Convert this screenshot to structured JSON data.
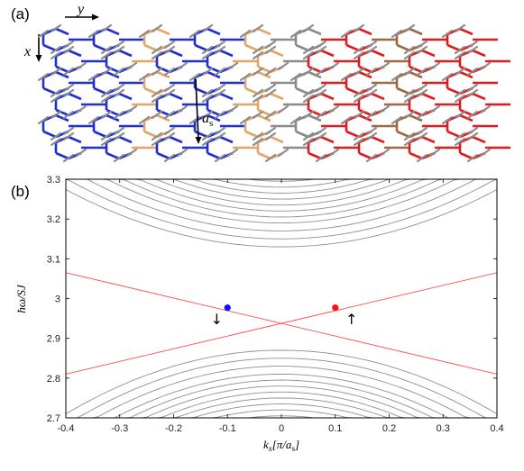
{
  "figure": {
    "panel_a_label": "(a)",
    "panel_b_label": "(b)",
    "lattice": {
      "x_axis_label": "x",
      "y_axis_label": "y",
      "spacing_label": "a",
      "spacing_subscript": "s",
      "colors": {
        "left_region": "#1f2fd0",
        "right_region": "#e11b1b",
        "interface_left": "#e3a56a",
        "interface_right": "#9c6a3e",
        "spins": "#8c8c8c",
        "center_bonds": "#8a8a8a"
      },
      "icons": [
        "arrow-icon",
        "spin-cone-icon"
      ]
    }
  },
  "chart_data": {
    "type": "line",
    "title": "",
    "xlabel": "k_x[π/a_s]",
    "ylabel": "ħω/SJ",
    "xlim": [
      -0.4,
      0.4
    ],
    "ylim": [
      2.7,
      3.3
    ],
    "x_ticks": [
      -0.4,
      -0.3,
      -0.2,
      -0.1,
      0,
      0.1,
      0.2,
      0.3,
      0.4
    ],
    "y_ticks": [
      2.7,
      2.8,
      2.9,
      3,
      3.1,
      3.2,
      3.3
    ],
    "x_tick_labels": [
      "-0.4",
      "-0.3",
      "-0.2",
      "-0.1",
      "0",
      "0.1",
      "0.2",
      "0.3",
      "0.4"
    ],
    "y_tick_labels": [
      "2.7",
      "2.8",
      "2.9",
      "3",
      "3.1",
      "3.2",
      "3.3"
    ],
    "grid": false,
    "bulk_bands": {
      "color": "#8f8f8f",
      "upper_band_minima_at_kx0": [
        3.13,
        3.15,
        3.17,
        3.19,
        3.205,
        3.22,
        3.235,
        3.25,
        3.265,
        3.28,
        3.295,
        3.31,
        3.33,
        3.36
      ],
      "upper_band_curvature": [
        0.9,
        0.95,
        1.0,
        1.05,
        1.1,
        1.15,
        1.2,
        1.25,
        1.3,
        1.3,
        1.3,
        1.3,
        1.3,
        1.3
      ],
      "lower_band_maxima_at_kx0": [
        2.87,
        2.85,
        2.83,
        2.81,
        2.795,
        2.78,
        2.765,
        2.75,
        2.735,
        2.72,
        2.705,
        2.69,
        2.67,
        2.64
      ],
      "lower_band_curvature": [
        1.0,
        1.05,
        1.1,
        1.15,
        1.2,
        1.25,
        1.3,
        1.3,
        1.3,
        1.3,
        1.3,
        1.3,
        1.3,
        1.3
      ]
    },
    "series": [
      {
        "x": [
          -0.4,
          0.4
        ],
        "y": [
          3.065,
          2.81
        ],
        "color": "#ff4d4d"
      },
      {
        "x": [
          -0.4,
          0.4
        ],
        "y": [
          2.81,
          3.065
        ],
        "color": "#ff4d4d"
      }
    ],
    "points": [
      {
        "x": -0.1,
        "y": 2.977,
        "color": "#1010ff",
        "label": "↓"
      },
      {
        "x": 0.1,
        "y": 2.977,
        "color": "#ff1010",
        "label": "↑"
      }
    ],
    "annotations": [
      {
        "text": "↓",
        "x": -0.12,
        "y": 2.935
      },
      {
        "text": "↑",
        "x": 0.13,
        "y": 2.935
      }
    ]
  }
}
